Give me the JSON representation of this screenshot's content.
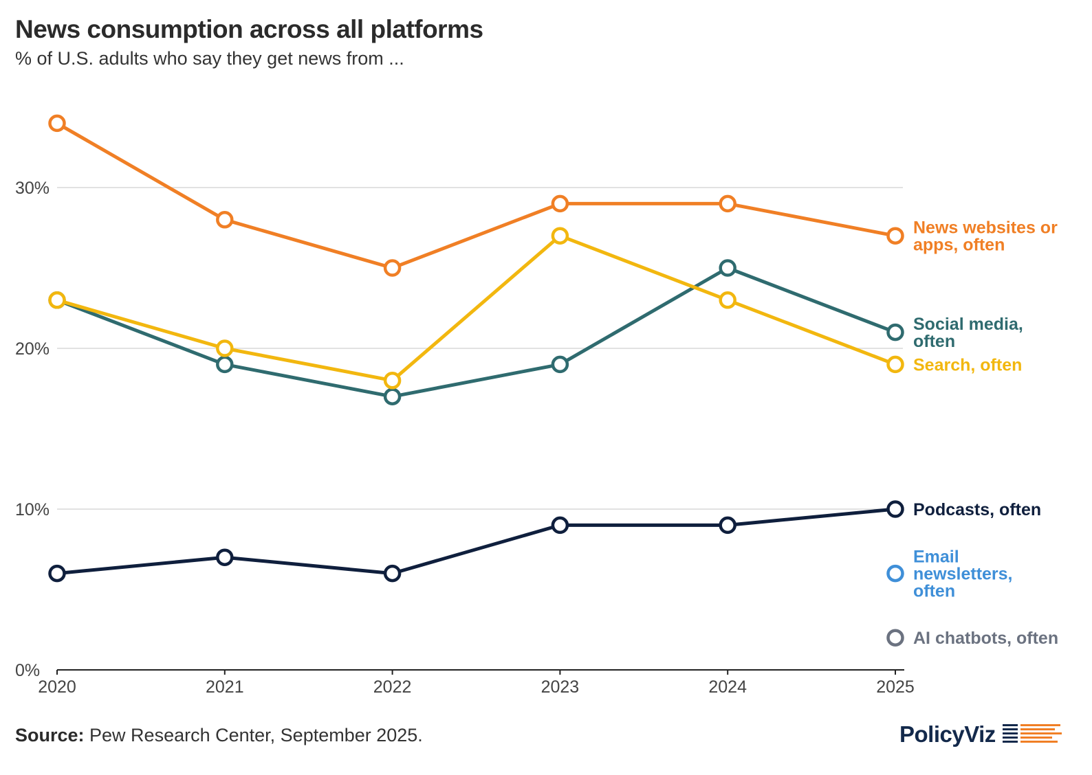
{
  "title": "News consumption across all platforms",
  "subtitle": "% of U.S. adults who say they get news from ...",
  "source_label": "Source:",
  "source_text": " Pew Research Center, September 2025.",
  "brand": "PolicyViz",
  "chart_data": {
    "type": "line",
    "x": [
      2020,
      2021,
      2022,
      2023,
      2024,
      2025
    ],
    "x_tick_labels": [
      "2020",
      "2021",
      "2022",
      "2023",
      "2024",
      "2025"
    ],
    "y_ticks": [
      0,
      10,
      20,
      30
    ],
    "y_tick_labels": [
      "0%",
      "10%",
      "20%",
      "30%"
    ],
    "ylim": [
      0,
      34
    ],
    "grid": true,
    "series": [
      {
        "name": "News websites or apps, often",
        "label_lines": [
          "News websites or",
          "apps, often"
        ],
        "color": "#f07f25",
        "values": [
          34,
          28,
          25,
          29,
          29,
          27
        ]
      },
      {
        "name": "Social media, often",
        "label_lines": [
          "Social media,",
          "often"
        ],
        "color": "#2f6b6f",
        "values": [
          23,
          19,
          17,
          19,
          25,
          21
        ]
      },
      {
        "name": "Search, often",
        "label_lines": [
          "Search, often"
        ],
        "color": "#f2b70f",
        "values": [
          23,
          20,
          18,
          27,
          23,
          19
        ]
      },
      {
        "name": "Podcasts, often",
        "label_lines": [
          "Podcasts, often"
        ],
        "color": "#0f1f3d",
        "values": [
          6,
          7,
          6,
          9,
          9,
          10
        ]
      },
      {
        "name": "Email newsletters, often",
        "label_lines": [
          "Email",
          "newsletters,",
          "often"
        ],
        "color": "#3f8fd8",
        "values": [
          null,
          null,
          null,
          null,
          null,
          6
        ]
      },
      {
        "name": "AI chatbots, often",
        "label_lines": [
          "AI chatbots, often"
        ],
        "color": "#6b7280",
        "values": [
          null,
          null,
          null,
          null,
          null,
          2
        ]
      }
    ]
  }
}
